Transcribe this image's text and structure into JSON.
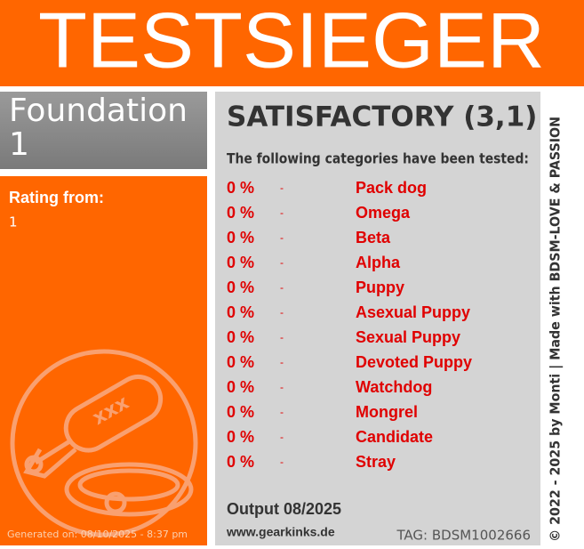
{
  "banner": {
    "title": "TESTSIEGER"
  },
  "product": {
    "name": "Foundation 1",
    "rating_label": "Rating from:",
    "rating_value": "1",
    "generated": "Generated on: 08/10/2025 - 8:37 pm"
  },
  "result": {
    "verdict": "SATISFACTORY (3,1)",
    "intro": "The following categories have been tested:",
    "rows": [
      {
        "percent": "0 %",
        "separator": "-",
        "name": "Pack dog"
      },
      {
        "percent": "0 %",
        "separator": "-",
        "name": "Omega"
      },
      {
        "percent": "0 %",
        "separator": "-",
        "name": "Beta"
      },
      {
        "percent": "0 %",
        "separator": "-",
        "name": "Alpha"
      },
      {
        "percent": "0 %",
        "separator": "-",
        "name": "Puppy"
      },
      {
        "percent": "0 %",
        "separator": "-",
        "name": "Asexual Puppy"
      },
      {
        "percent": "0 %",
        "separator": "-",
        "name": "Sexual Puppy"
      },
      {
        "percent": "0 %",
        "separator": "-",
        "name": "Devoted Puppy"
      },
      {
        "percent": "0 %",
        "separator": "-",
        "name": "Watchdog"
      },
      {
        "percent": "0 %",
        "separator": "-",
        "name": "Mongrel"
      },
      {
        "percent": "0 %",
        "separator": "-",
        "name": "Candidate"
      },
      {
        "percent": "0 %",
        "separator": "-",
        "name": "Stray"
      }
    ],
    "output": "Output 08/2025",
    "website": "www.gearkinks.de",
    "tag": "TAG: BDSM1002666"
  },
  "footer": {
    "credit": "© 2022 - 2025 by Monti | Made with BDSM-LOVE & PASSION"
  }
}
